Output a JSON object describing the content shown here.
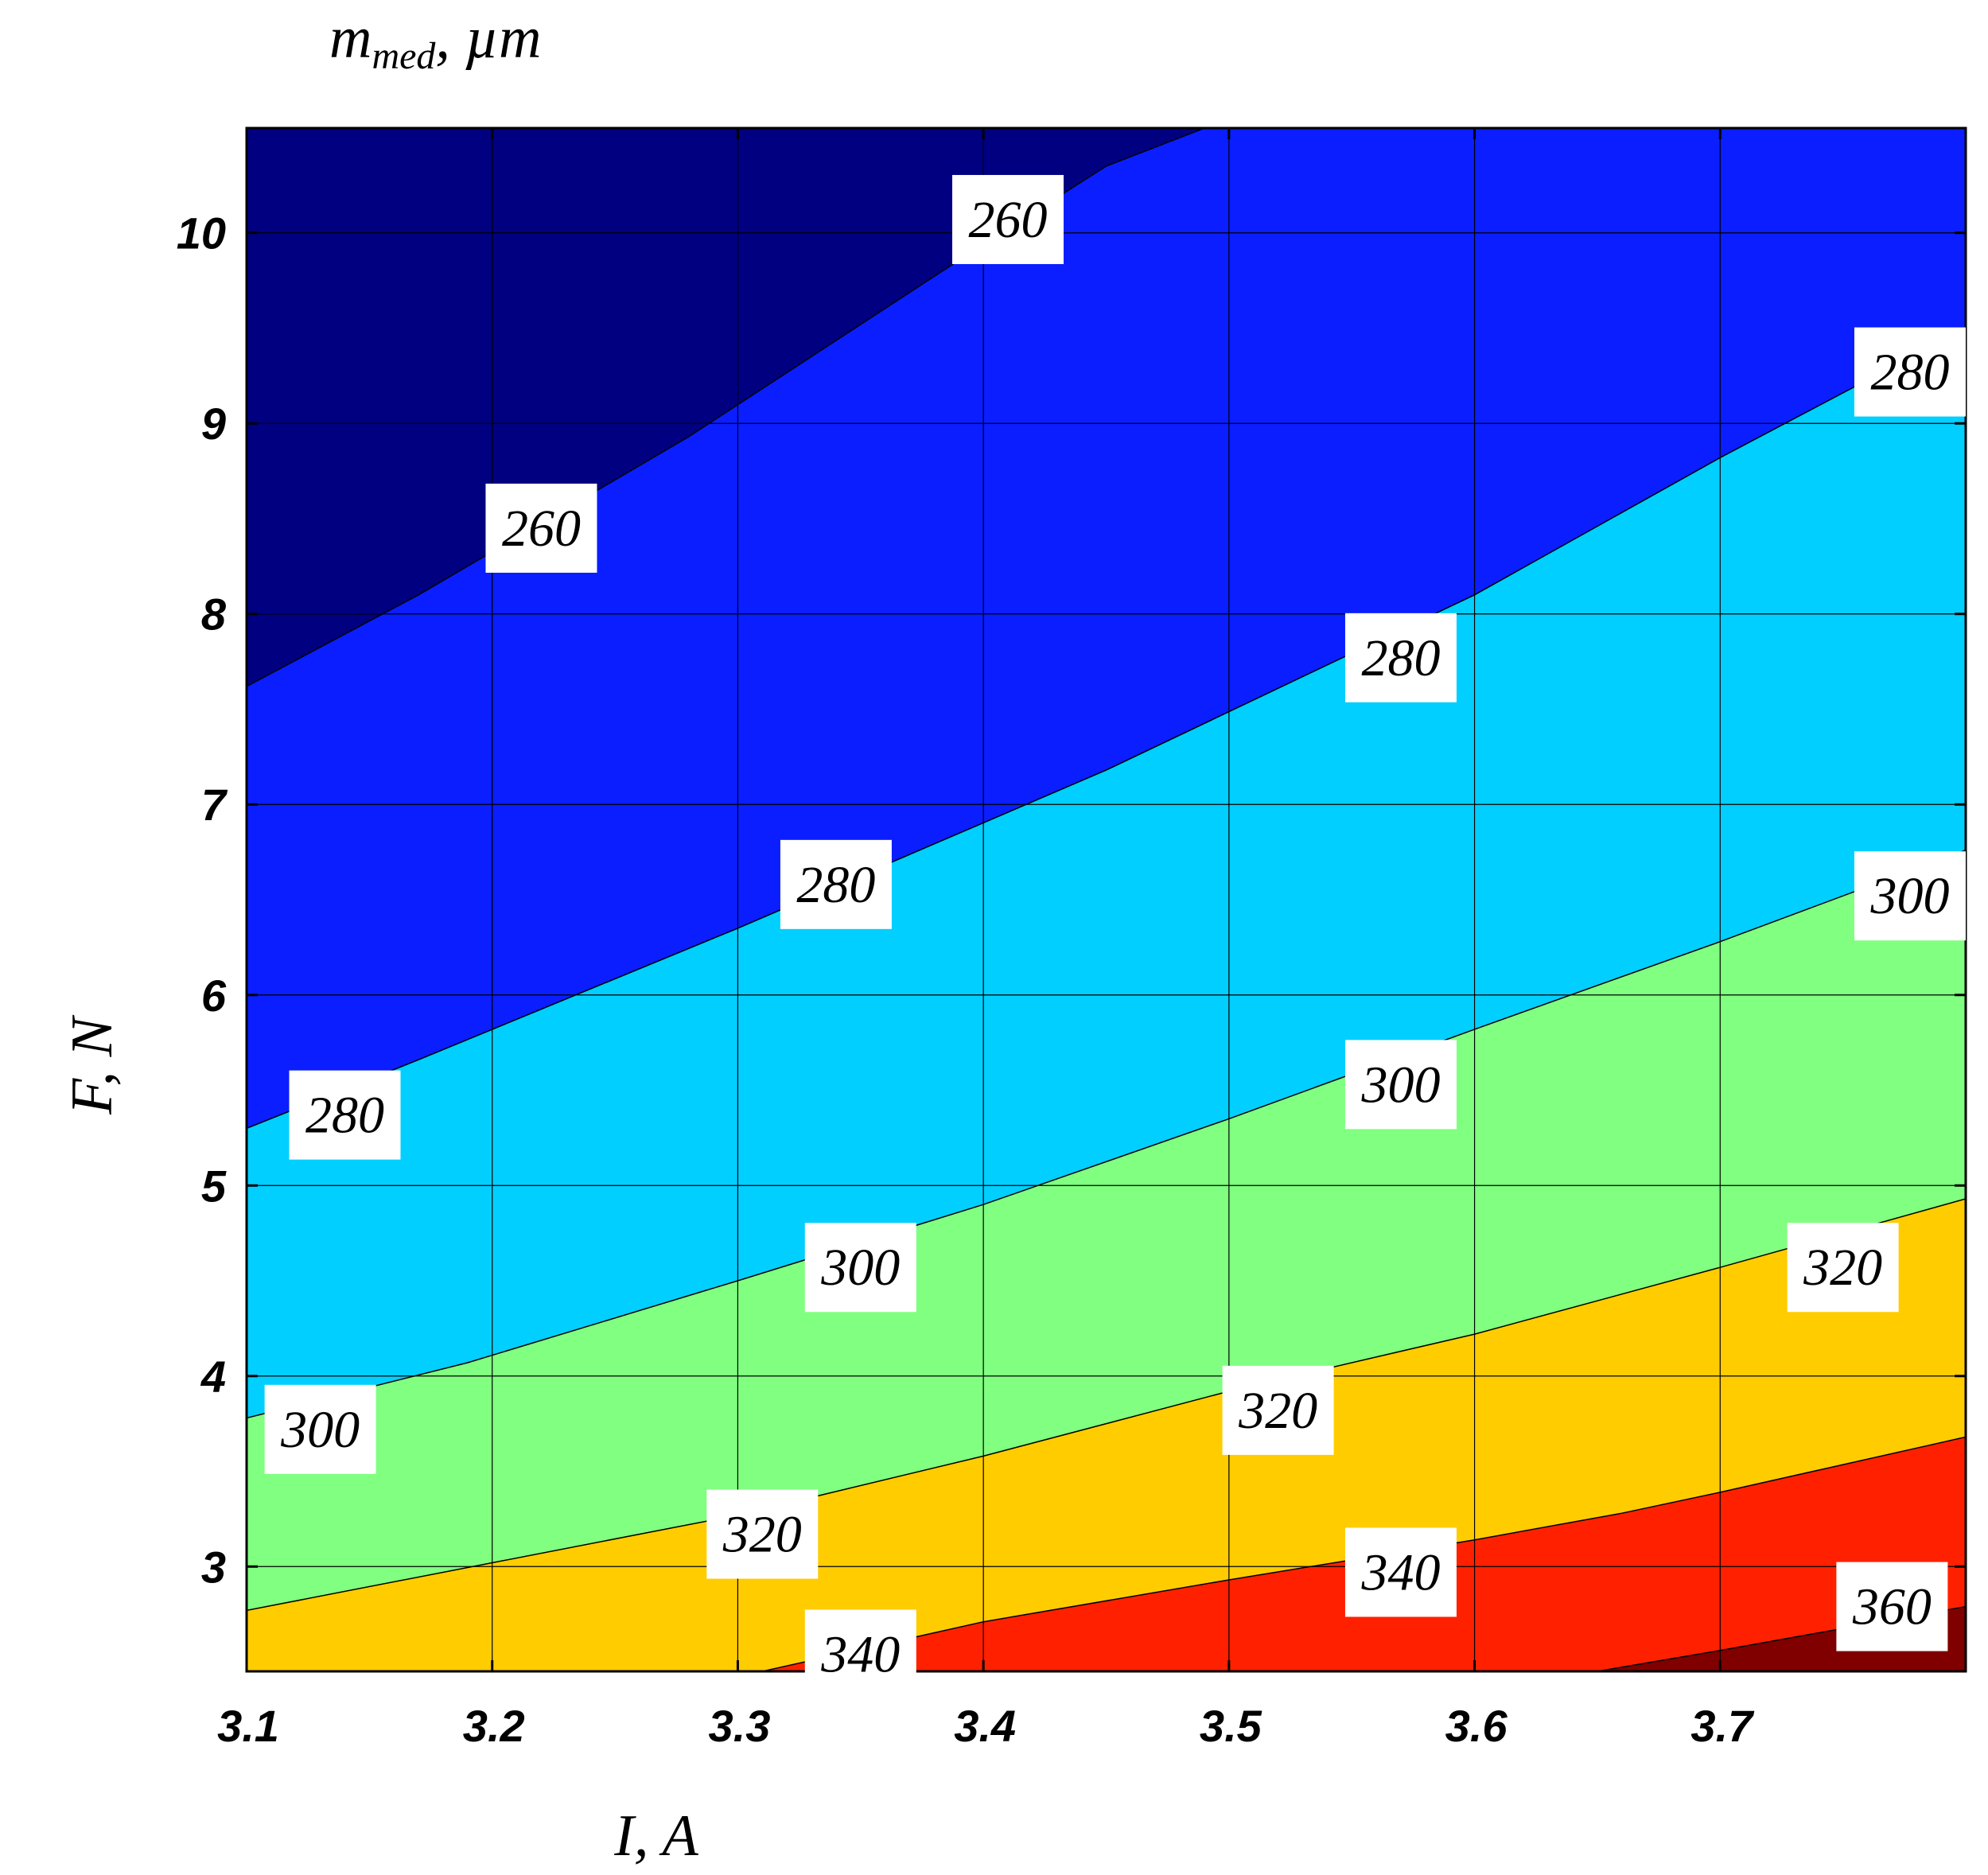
{
  "chart_data": {
    "type": "heatmap",
    "subtype": "filled-contour",
    "title": "",
    "colorbar_title_main": "m",
    "colorbar_title_sub": "med",
    "colorbar_title_unit": ", µm",
    "xlabel": "I, A",
    "ylabel": "F, N",
    "xlim": [
      3.1,
      3.8
    ],
    "ylim": [
      2.45,
      10.55
    ],
    "x_ticks": [
      3.1,
      3.2,
      3.3,
      3.4,
      3.5,
      3.6,
      3.7
    ],
    "x_tick_labels": [
      "3.1",
      "3.2",
      "3.3",
      "3.4",
      "3.5",
      "3.6",
      "3.7"
    ],
    "y_ticks": [
      3,
      4,
      5,
      6,
      7,
      8,
      9,
      10
    ],
    "y_tick_labels": [
      "3",
      "4",
      "5",
      "6",
      "7",
      "8",
      "9",
      "10"
    ],
    "grid": true,
    "levels": [
      260,
      280,
      300,
      320,
      340,
      360
    ],
    "band_colors": [
      "#000080",
      "#0a1eff",
      "#00cfff",
      "#80ff80",
      "#ffcc00",
      "#ff2000",
      "#800000"
    ],
    "contour_lines": [
      {
        "level": 260,
        "points": [
          [
            3.1,
            7.62
          ],
          [
            3.17,
            8.1
          ],
          [
            3.28,
            8.93
          ],
          [
            3.4,
            9.94
          ],
          [
            3.45,
            10.35
          ],
          [
            3.49,
            10.55
          ]
        ]
      },
      {
        "level": 280,
        "points": [
          [
            3.1,
            5.3
          ],
          [
            3.17,
            5.66
          ],
          [
            3.3,
            6.35
          ],
          [
            3.45,
            7.18
          ],
          [
            3.6,
            8.1
          ],
          [
            3.7,
            8.82
          ],
          [
            3.8,
            9.5
          ]
        ]
      },
      {
        "level": 300,
        "points": [
          [
            3.1,
            3.78
          ],
          [
            3.19,
            4.07
          ],
          [
            3.3,
            4.5
          ],
          [
            3.4,
            4.9
          ],
          [
            3.5,
            5.35
          ],
          [
            3.6,
            5.82
          ],
          [
            3.7,
            6.28
          ],
          [
            3.8,
            6.76
          ]
        ]
      },
      {
        "level": 320,
        "points": [
          [
            3.1,
            2.77
          ],
          [
            3.2,
            3.02
          ],
          [
            3.3,
            3.27
          ],
          [
            3.4,
            3.58
          ],
          [
            3.5,
            3.92
          ],
          [
            3.6,
            4.22
          ],
          [
            3.7,
            4.57
          ],
          [
            3.8,
            4.93
          ]
        ]
      },
      {
        "level": 340,
        "points": [
          [
            3.31,
            2.45
          ],
          [
            3.4,
            2.71
          ],
          [
            3.5,
            2.93
          ],
          [
            3.6,
            3.14
          ],
          [
            3.66,
            3.28
          ],
          [
            3.7,
            3.39
          ],
          [
            3.8,
            3.68
          ]
        ]
      },
      {
        "level": 360,
        "points": [
          [
            3.65,
            2.45
          ],
          [
            3.7,
            2.56
          ],
          [
            3.8,
            2.79
          ]
        ]
      }
    ],
    "contour_labels": [
      {
        "text": "260",
        "x": 3.41,
        "y": 10.07
      },
      {
        "text": "260",
        "x": 3.22,
        "y": 8.45
      },
      {
        "text": "280",
        "x": 3.79,
        "y": 9.27
      },
      {
        "text": "280",
        "x": 3.57,
        "y": 7.77
      },
      {
        "text": "280",
        "x": 3.34,
        "y": 6.58
      },
      {
        "text": "280",
        "x": 3.14,
        "y": 5.37
      },
      {
        "text": "300",
        "x": 3.79,
        "y": 6.52
      },
      {
        "text": "300",
        "x": 3.57,
        "y": 5.53
      },
      {
        "text": "300",
        "x": 3.35,
        "y": 4.57
      },
      {
        "text": "300",
        "x": 3.13,
        "y": 3.72
      },
      {
        "text": "320",
        "x": 3.75,
        "y": 4.57
      },
      {
        "text": "320",
        "x": 3.52,
        "y": 3.82
      },
      {
        "text": "320",
        "x": 3.31,
        "y": 3.17
      },
      {
        "text": "340",
        "x": 3.57,
        "y": 2.97
      },
      {
        "text": "340",
        "x": 3.35,
        "y": 2.54
      },
      {
        "text": "360",
        "x": 3.77,
        "y": 2.79
      }
    ]
  }
}
